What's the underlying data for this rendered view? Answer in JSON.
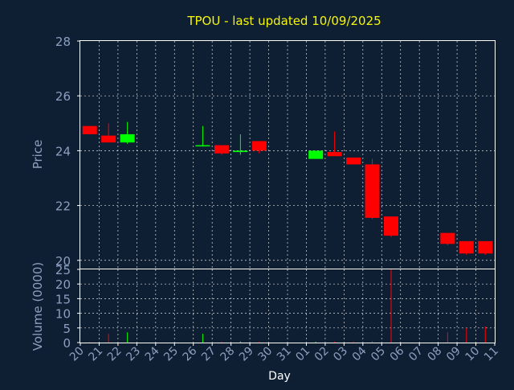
{
  "chart_data": {
    "title": "TPOU - last updated 10/09/2025",
    "xlabel": "Day",
    "colors": {
      "background": "#0f1f33",
      "up": "#00ff00",
      "down": "#ff0000",
      "title": "#f5f50a",
      "axis_text": "#8c9fbf",
      "grid": "#ffffff"
    },
    "x_ticks": [
      "20",
      "21",
      "22",
      "23",
      "24",
      "25",
      "26",
      "27",
      "28",
      "29",
      "30",
      "31",
      "01",
      "02",
      "03",
      "04",
      "05",
      "06",
      "07",
      "08",
      "09",
      "10",
      "11"
    ],
    "price_panel": {
      "type": "candlestick",
      "ylabel": "Price",
      "ylim": [
        19.7,
        28
      ],
      "yticks": [
        20,
        22,
        24,
        26,
        28
      ],
      "grid": true
    },
    "volume_panel": {
      "type": "bar",
      "ylabel": "Volume (0000)",
      "ylim": [
        0,
        25
      ],
      "yticks": [
        0,
        5,
        10,
        15,
        20,
        25
      ],
      "grid": true
    },
    "candles": [
      {
        "x": 0,
        "open": 24.9,
        "high": 24.9,
        "low": 24.6,
        "close": 24.6,
        "volume": 0.2
      },
      {
        "x": 1,
        "open": 24.55,
        "high": 25.0,
        "low": 24.3,
        "close": 24.3,
        "volume": 3.0
      },
      {
        "x": 2,
        "open": 24.3,
        "high": 25.05,
        "low": 24.25,
        "close": 24.6,
        "volume": 3.5
      },
      {
        "x": 6,
        "open": 24.2,
        "high": 24.9,
        "low": 24.15,
        "close": 24.2,
        "volume": 3.0
      },
      {
        "x": 7,
        "open": 24.2,
        "high": 24.2,
        "low": 23.85,
        "close": 23.9,
        "volume": 0.3
      },
      {
        "x": 8,
        "open": 23.95,
        "high": 24.6,
        "low": 23.85,
        "close": 24.0,
        "volume": 0.4
      },
      {
        "x": 9,
        "open": 24.35,
        "high": 24.35,
        "low": 23.9,
        "close": 24.0,
        "volume": 0.3
      },
      {
        "x": 12,
        "open": 23.7,
        "high": 24.0,
        "low": 23.7,
        "close": 24.0,
        "volume": 0.3
      },
      {
        "x": 13,
        "open": 23.95,
        "high": 24.7,
        "low": 23.8,
        "close": 23.8,
        "volume": 0.3
      },
      {
        "x": 14,
        "open": 23.75,
        "high": 23.75,
        "low": 23.5,
        "close": 23.5,
        "volume": 0.3
      },
      {
        "x": 15,
        "open": 23.5,
        "high": 23.7,
        "low": 21.5,
        "close": 21.55,
        "volume": 0.5
      },
      {
        "x": 16,
        "open": 21.6,
        "high": 21.6,
        "low": 20.85,
        "close": 20.9,
        "volume": 25.0
      },
      {
        "x": 19,
        "open": 21.0,
        "high": 21.0,
        "low": 20.55,
        "close": 20.6,
        "volume": 3.5
      },
      {
        "x": 20,
        "open": 20.7,
        "high": 20.7,
        "low": 20.2,
        "close": 20.25,
        "volume": 5.0
      },
      {
        "x": 21,
        "open": 20.7,
        "high": 20.7,
        "low": 20.2,
        "close": 20.25,
        "volume": 5.5
      }
    ]
  }
}
